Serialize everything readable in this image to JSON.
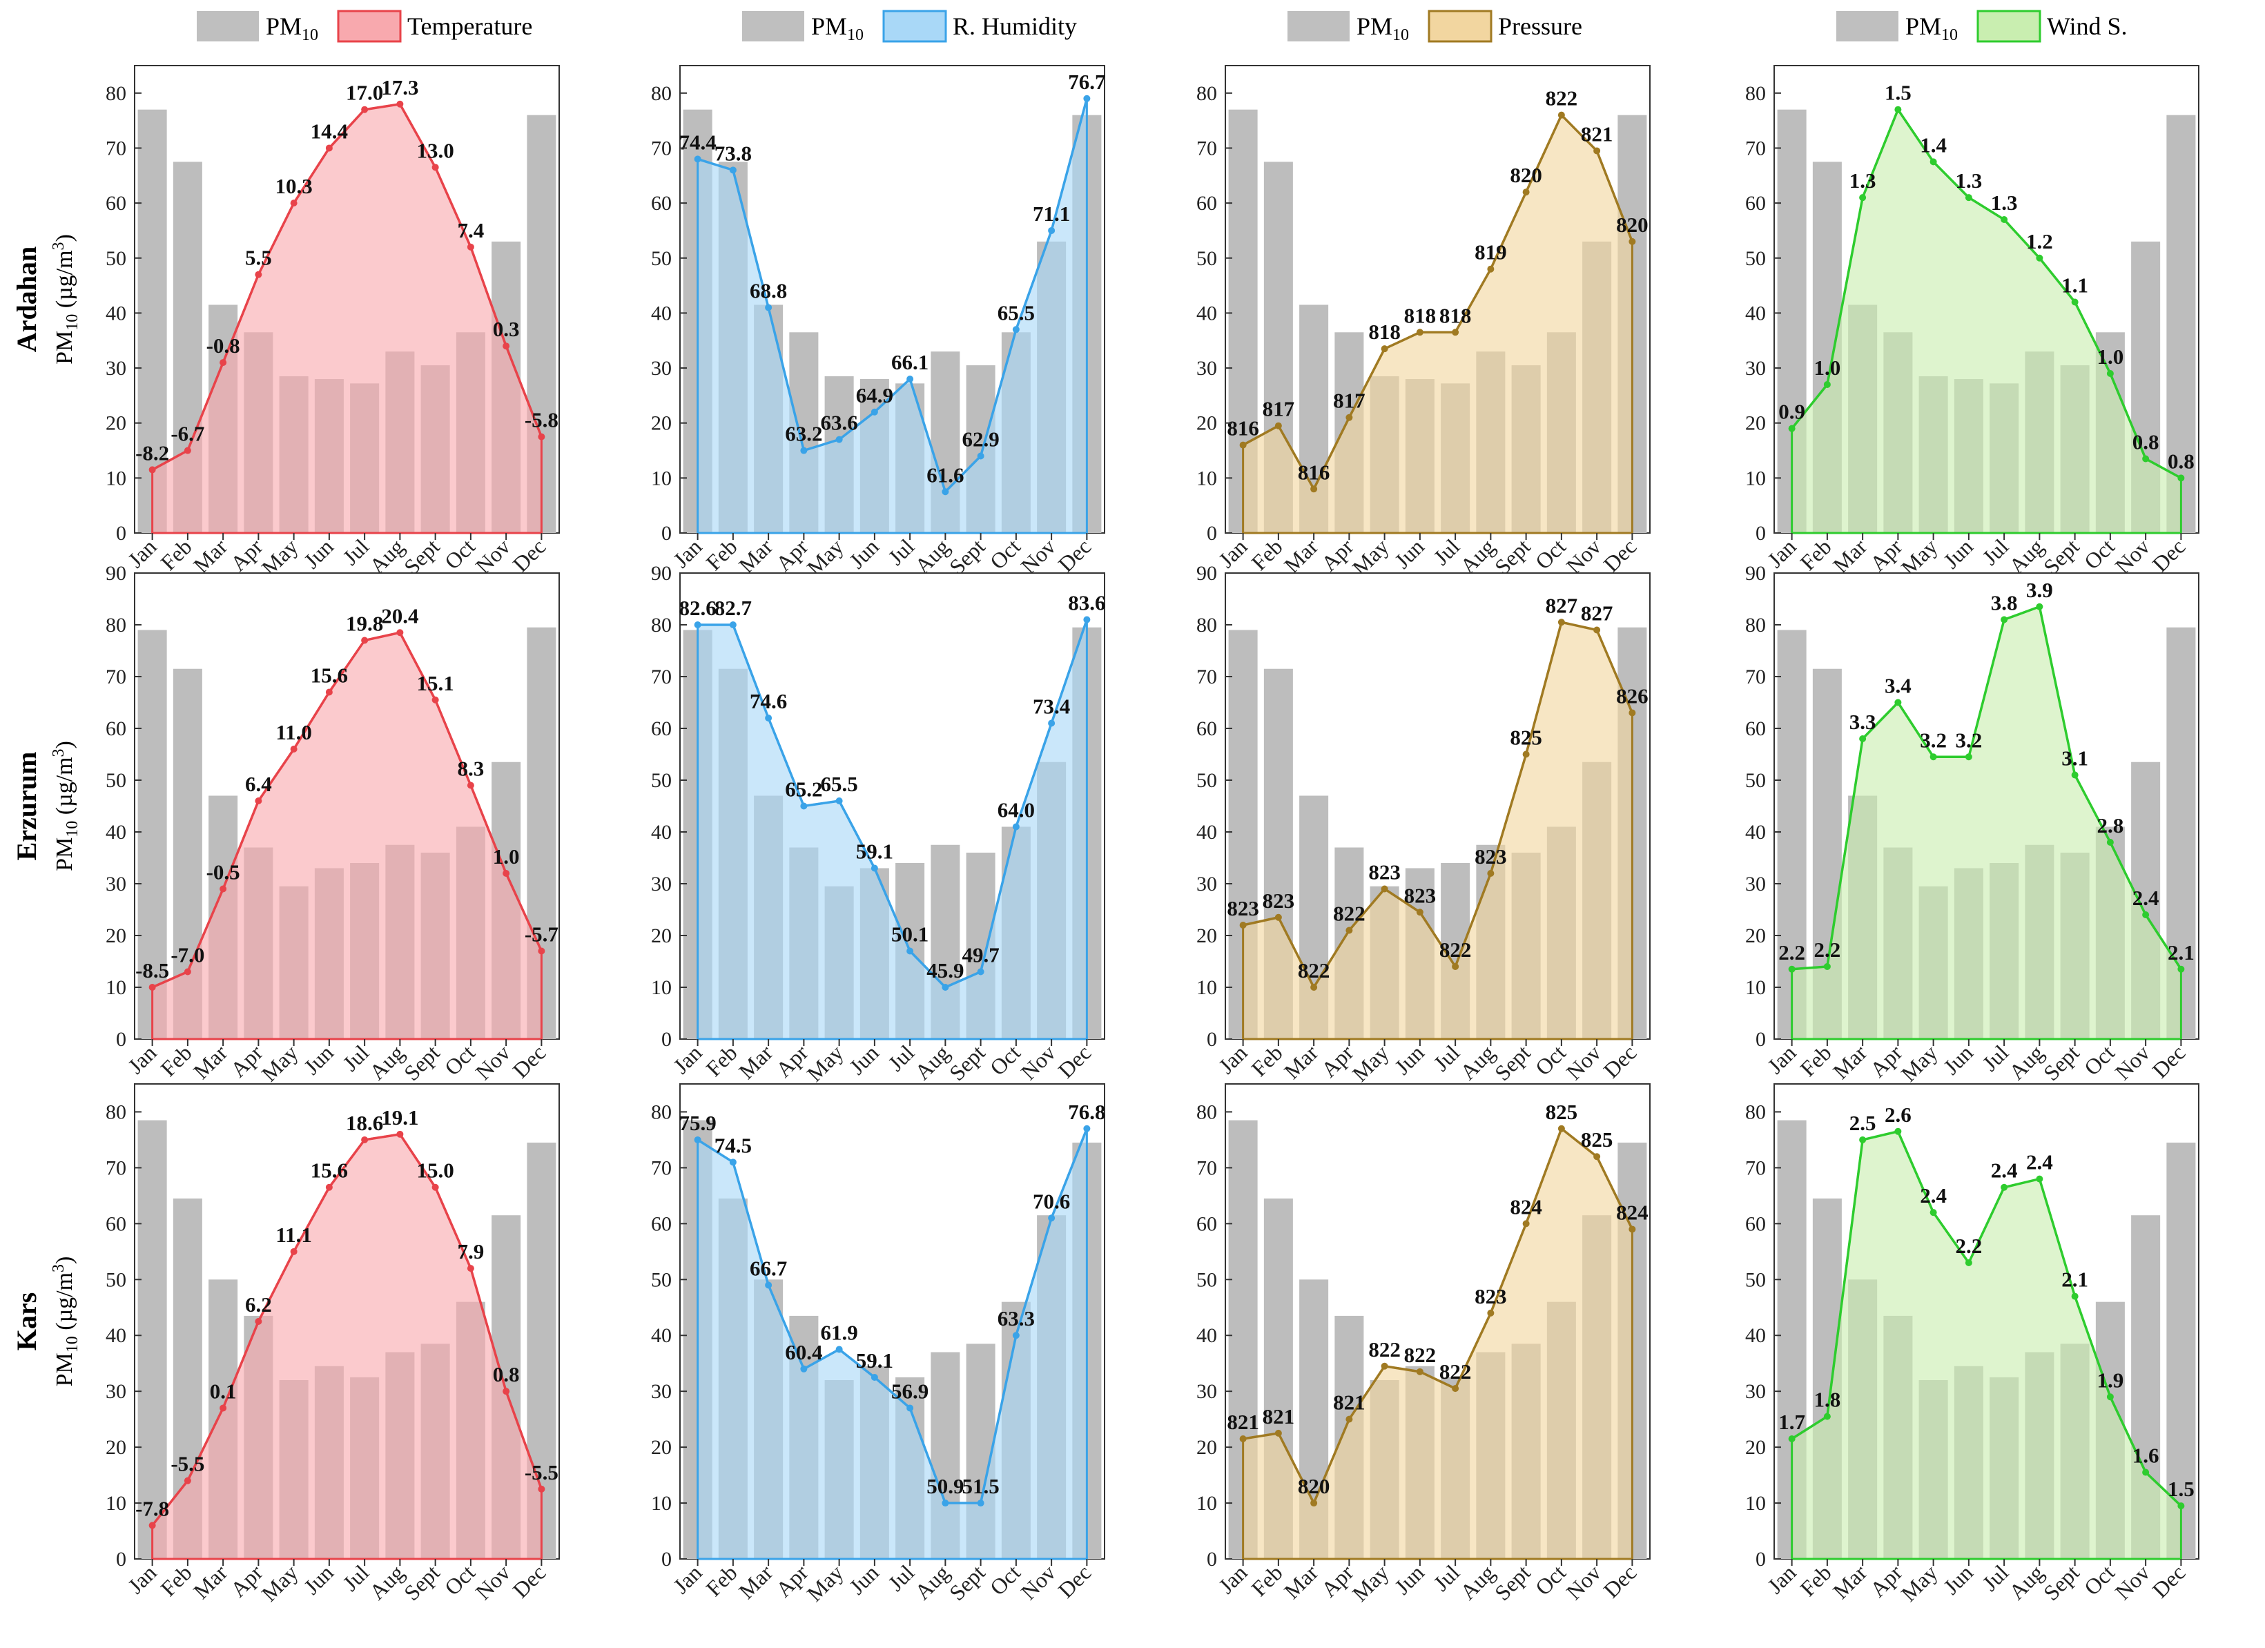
{
  "months": [
    "Jan",
    "Feb",
    "Mar",
    "Apr",
    "May",
    "Jun",
    "Jul",
    "Aug",
    "Sept",
    "Oct",
    "Nov",
    "Dec"
  ],
  "rows": [
    {
      "name": "Ardahan",
      "ylabel_main": "PM",
      "ylabel_sub": "10",
      "ylabel_unit": " (µg/m",
      "ylabel_sup": "3",
      "ylabel_end": ")"
    },
    {
      "name": "Erzurum",
      "ylabel_main": "PM",
      "ylabel_sub": "10",
      "ylabel_unit": " (µg/m",
      "ylabel_sup": "3",
      "ylabel_end": ")"
    },
    {
      "name": "Kars",
      "ylabel_main": "PM",
      "ylabel_sub": "10",
      "ylabel_unit": " (µg/m",
      "ylabel_sup": "3",
      "ylabel_end": ")"
    }
  ],
  "columns": [
    {
      "variable": "Temperature",
      "line_color": "#e8434a",
      "fill_color": "#f8a9ae",
      "legend_bar": "PM",
      "legend_bar_sub": "10",
      "legend_line": "Temperature"
    },
    {
      "variable": "R. Humidity",
      "line_color": "#3aa3e8",
      "fill_color": "#a9d8f7",
      "legend_bar": "PM",
      "legend_bar_sub": "10",
      "legend_line": "R. Humidity"
    },
    {
      "variable": "Pressure",
      "line_color": "#a07a22",
      "fill_color": "#f2d6a0",
      "legend_bar": "PM",
      "legend_bar_sub": "10",
      "legend_line": "Pressure"
    },
    {
      "variable": "Wind S.",
      "line_color": "#2ecc2e",
      "fill_color": "#c9eeb0",
      "legend_bar": "PM",
      "legend_bar_sub": "10",
      "legend_line": "Wind S."
    }
  ],
  "chart_data": [
    {
      "type": "bar+area",
      "row": "Ardahan",
      "variable": "Temperature",
      "categories": [
        "Jan",
        "Feb",
        "Mar",
        "Apr",
        "May",
        "Jun",
        "Jul",
        "Aug",
        "Sept",
        "Oct",
        "Nov",
        "Dec"
      ],
      "pm10": [
        77,
        67.5,
        41.5,
        36.5,
        28.5,
        28,
        27.2,
        33,
        30.5,
        36.5,
        53,
        76
      ],
      "ylim": [
        0,
        85
      ],
      "yticks": [
        0,
        10,
        20,
        30,
        40,
        50,
        60,
        70,
        80
      ],
      "line_y": [
        11.5,
        15,
        31,
        47,
        60,
        70,
        77,
        78,
        66.5,
        52,
        34,
        17.5
      ],
      "labels": [
        "-8.2",
        "-6.7",
        "-0.8",
        "5.5",
        "10.3",
        "14.4",
        "17.0",
        "17.3",
        "13.0",
        "7.4",
        "0.3",
        "-5.8"
      ]
    },
    {
      "type": "bar+area",
      "row": "Ardahan",
      "variable": "R. Humidity",
      "categories": [
        "Jan",
        "Feb",
        "Mar",
        "Apr",
        "May",
        "Jun",
        "Jul",
        "Aug",
        "Sept",
        "Oct",
        "Nov",
        "Dec"
      ],
      "pm10": [
        77,
        67.5,
        41.5,
        36.5,
        28.5,
        28,
        27.2,
        33,
        30.5,
        36.5,
        53,
        76
      ],
      "ylim": [
        0,
        85
      ],
      "yticks": [
        0,
        10,
        20,
        30,
        40,
        50,
        60,
        70,
        80
      ],
      "line_y": [
        68,
        66,
        41,
        15,
        17,
        22,
        28,
        7.5,
        14,
        37,
        55,
        79
      ],
      "labels": [
        "74.4",
        "73.8",
        "68.8",
        "63.2",
        "63.6",
        "64.9",
        "66.1",
        "61.6",
        "62.9",
        "65.5",
        "71.1",
        "76.7"
      ]
    },
    {
      "type": "bar+area",
      "row": "Ardahan",
      "variable": "Pressure",
      "categories": [
        "Jan",
        "Feb",
        "Mar",
        "Apr",
        "May",
        "Jun",
        "Jul",
        "Aug",
        "Sept",
        "Oct",
        "Nov",
        "Dec"
      ],
      "pm10": [
        77,
        67.5,
        41.5,
        36.5,
        28.5,
        28,
        27.2,
        33,
        30.5,
        36.5,
        53,
        76
      ],
      "ylim": [
        0,
        85
      ],
      "yticks": [
        0,
        10,
        20,
        30,
        40,
        50,
        60,
        70,
        80
      ],
      "line_y": [
        16,
        19.5,
        8,
        21,
        33.5,
        36.5,
        36.5,
        48,
        62,
        76,
        69.5,
        53
      ],
      "labels": [
        "816",
        "817",
        "816",
        "817",
        "818",
        "818",
        "818",
        "819",
        "820",
        "822",
        "821",
        "820"
      ]
    },
    {
      "type": "bar+area",
      "row": "Ardahan",
      "variable": "Wind S.",
      "categories": [
        "Jan",
        "Feb",
        "Mar",
        "Apr",
        "May",
        "Jun",
        "Jul",
        "Aug",
        "Sept",
        "Oct",
        "Nov",
        "Dec"
      ],
      "pm10": [
        77,
        67.5,
        41.5,
        36.5,
        28.5,
        28,
        27.2,
        33,
        30.5,
        36.5,
        53,
        76
      ],
      "ylim": [
        0,
        85
      ],
      "yticks": [
        0,
        10,
        20,
        30,
        40,
        50,
        60,
        70,
        80
      ],
      "line_y": [
        19,
        27,
        61,
        77,
        67.5,
        61,
        57,
        50,
        42,
        29,
        13.5,
        10
      ],
      "labels": [
        "0.9",
        "1.0",
        "1.3",
        "1.5",
        "1.4",
        "1.3",
        "1.3",
        "1.2",
        "1.1",
        "1.0",
        "0.8",
        "0.8"
      ]
    },
    {
      "type": "bar+area",
      "row": "Erzurum",
      "variable": "Temperature",
      "categories": [
        "Jan",
        "Feb",
        "Mar",
        "Apr",
        "May",
        "Jun",
        "Jul",
        "Aug",
        "Sept",
        "Oct",
        "Nov",
        "Dec"
      ],
      "pm10": [
        79,
        71.5,
        47,
        37,
        29.5,
        33,
        34,
        37.5,
        36,
        41,
        53.5,
        79.5
      ],
      "ylim": [
        0,
        90
      ],
      "yticks": [
        0,
        10,
        20,
        30,
        40,
        50,
        60,
        70,
        80,
        90
      ],
      "line_y": [
        10,
        13,
        29,
        46,
        56,
        67,
        77,
        78.5,
        65.5,
        49,
        32,
        17
      ],
      "labels": [
        "-8.5",
        "-7.0",
        "-0.5",
        "6.4",
        "11.0",
        "15.6",
        "19.8",
        "20.4",
        "15.1",
        "8.3",
        "1.0",
        "-5.7"
      ]
    },
    {
      "type": "bar+area",
      "row": "Erzurum",
      "variable": "R. Humidity",
      "categories": [
        "Jan",
        "Feb",
        "Mar",
        "Apr",
        "May",
        "Jun",
        "Jul",
        "Aug",
        "Sept",
        "Oct",
        "Nov",
        "Dec"
      ],
      "pm10": [
        79,
        71.5,
        47,
        37,
        29.5,
        33,
        34,
        37.5,
        36,
        41,
        53.5,
        79.5
      ],
      "ylim": [
        0,
        90
      ],
      "yticks": [
        0,
        10,
        20,
        30,
        40,
        50,
        60,
        70,
        80,
        90
      ],
      "line_y": [
        80,
        80,
        62,
        45,
        46,
        33,
        17,
        10,
        13,
        41,
        61,
        81
      ],
      "labels": [
        "82.6",
        "82.7",
        "74.6",
        "65.2",
        "65.5",
        "59.1",
        "50.1",
        "45.9",
        "49.7",
        "64.0",
        "73.4",
        "83.6"
      ]
    },
    {
      "type": "bar+area",
      "row": "Erzurum",
      "variable": "Pressure",
      "categories": [
        "Jan",
        "Feb",
        "Mar",
        "Apr",
        "May",
        "Jun",
        "Jul",
        "Aug",
        "Sept",
        "Oct",
        "Nov",
        "Dec"
      ],
      "pm10": [
        79,
        71.5,
        47,
        37,
        29.5,
        33,
        34,
        37.5,
        36,
        41,
        53.5,
        79.5
      ],
      "ylim": [
        0,
        90
      ],
      "yticks": [
        0,
        10,
        20,
        30,
        40,
        50,
        60,
        70,
        80,
        90
      ],
      "line_y": [
        22,
        23.5,
        10,
        21,
        29,
        24.5,
        14,
        32,
        55,
        80.5,
        79,
        63
      ],
      "labels": [
        "823",
        "823",
        "822",
        "822",
        "823",
        "823",
        "822",
        "823",
        "825",
        "827",
        "827",
        "826"
      ]
    },
    {
      "type": "bar+area",
      "row": "Erzurum",
      "variable": "Wind S.",
      "categories": [
        "Jan",
        "Feb",
        "Mar",
        "Apr",
        "May",
        "Jun",
        "Jul",
        "Aug",
        "Sept",
        "Oct",
        "Nov",
        "Dec"
      ],
      "pm10": [
        79,
        71.5,
        47,
        37,
        29.5,
        33,
        34,
        37.5,
        36,
        41,
        53.5,
        79.5
      ],
      "ylim": [
        0,
        90
      ],
      "yticks": [
        0,
        10,
        20,
        30,
        40,
        50,
        60,
        70,
        80,
        90
      ],
      "line_y": [
        13.5,
        14,
        58,
        65,
        54.5,
        54.5,
        81,
        83.5,
        51,
        38,
        24,
        13.5
      ],
      "labels": [
        "2.2",
        "2.2",
        "3.3",
        "3.4",
        "3.2",
        "3.2",
        "3.8",
        "3.9",
        "3.1",
        "2.8",
        "2.4",
        "2.1"
      ]
    },
    {
      "type": "bar+area",
      "row": "Kars",
      "variable": "Temperature",
      "categories": [
        "Jan",
        "Feb",
        "Mar",
        "Apr",
        "May",
        "Jun",
        "Jul",
        "Aug",
        "Sept",
        "Oct",
        "Nov",
        "Dec"
      ],
      "pm10": [
        78.5,
        64.5,
        50,
        43.5,
        32,
        34.5,
        32.5,
        37,
        38.5,
        46,
        61.5,
        74.5
      ],
      "ylim": [
        0,
        85
      ],
      "yticks": [
        0,
        10,
        20,
        30,
        40,
        50,
        60,
        70,
        80
      ],
      "line_y": [
        6,
        14,
        27,
        42.5,
        55,
        66.5,
        75,
        76,
        66.5,
        52,
        30,
        12.5
      ],
      "labels": [
        "-7.8",
        "-5.5",
        "0.1",
        "6.2",
        "11.1",
        "15.6",
        "18.6",
        "19.1",
        "15.0",
        "7.9",
        "0.8",
        "-5.5"
      ]
    },
    {
      "type": "bar+area",
      "row": "Kars",
      "variable": "R. Humidity",
      "categories": [
        "Jan",
        "Feb",
        "Mar",
        "Apr",
        "May",
        "Jun",
        "Jul",
        "Aug",
        "Sept",
        "Oct",
        "Nov",
        "Dec"
      ],
      "pm10": [
        78.5,
        64.5,
        50,
        43.5,
        32,
        34.5,
        32.5,
        37,
        38.5,
        46,
        61.5,
        74.5
      ],
      "ylim": [
        0,
        85
      ],
      "yticks": [
        0,
        10,
        20,
        30,
        40,
        50,
        60,
        70,
        80
      ],
      "line_y": [
        75,
        71,
        49,
        34,
        37.5,
        32.5,
        27,
        10,
        10,
        40,
        61,
        77
      ],
      "labels": [
        "75.9",
        "74.5",
        "66.7",
        "60.4",
        "61.9",
        "59.1",
        "56.9",
        "50.9",
        "51.5",
        "63.3",
        "70.6",
        "76.8"
      ]
    },
    {
      "type": "bar+area",
      "row": "Kars",
      "variable": "Pressure",
      "categories": [
        "Jan",
        "Feb",
        "Mar",
        "Apr",
        "May",
        "Jun",
        "Jul",
        "Aug",
        "Sept",
        "Oct",
        "Nov",
        "Dec"
      ],
      "pm10": [
        78.5,
        64.5,
        50,
        43.5,
        32,
        34.5,
        32.5,
        37,
        38.5,
        46,
        61.5,
        74.5
      ],
      "ylim": [
        0,
        85
      ],
      "yticks": [
        0,
        10,
        20,
        30,
        40,
        50,
        60,
        70,
        80
      ],
      "line_y": [
        21.5,
        22.5,
        10,
        25,
        34.5,
        33.5,
        30.5,
        44,
        60,
        77,
        72,
        59
      ],
      "labels": [
        "821",
        "821",
        "820",
        "821",
        "822",
        "822",
        "822",
        "823",
        "824",
        "825",
        "825",
        "824"
      ]
    },
    {
      "type": "bar+area",
      "row": "Kars",
      "variable": "Wind S.",
      "categories": [
        "Jan",
        "Feb",
        "Mar",
        "Apr",
        "May",
        "Jun",
        "Jul",
        "Aug",
        "Sept",
        "Oct",
        "Nov",
        "Dec"
      ],
      "pm10": [
        78.5,
        64.5,
        50,
        43.5,
        32,
        34.5,
        32.5,
        37,
        38.5,
        46,
        61.5,
        74.5
      ],
      "ylim": [
        0,
        85
      ],
      "yticks": [
        0,
        10,
        20,
        30,
        40,
        50,
        60,
        70,
        80
      ],
      "line_y": [
        21.5,
        25.5,
        75,
        76.5,
        62,
        53,
        66.5,
        68,
        47,
        29,
        15.5,
        9.5
      ],
      "labels": [
        "1.7",
        "1.8",
        "2.5",
        "2.6",
        "2.4",
        "2.2",
        "2.4",
        "2.4",
        "2.1",
        "1.9",
        "1.6",
        "1.5"
      ]
    }
  ]
}
